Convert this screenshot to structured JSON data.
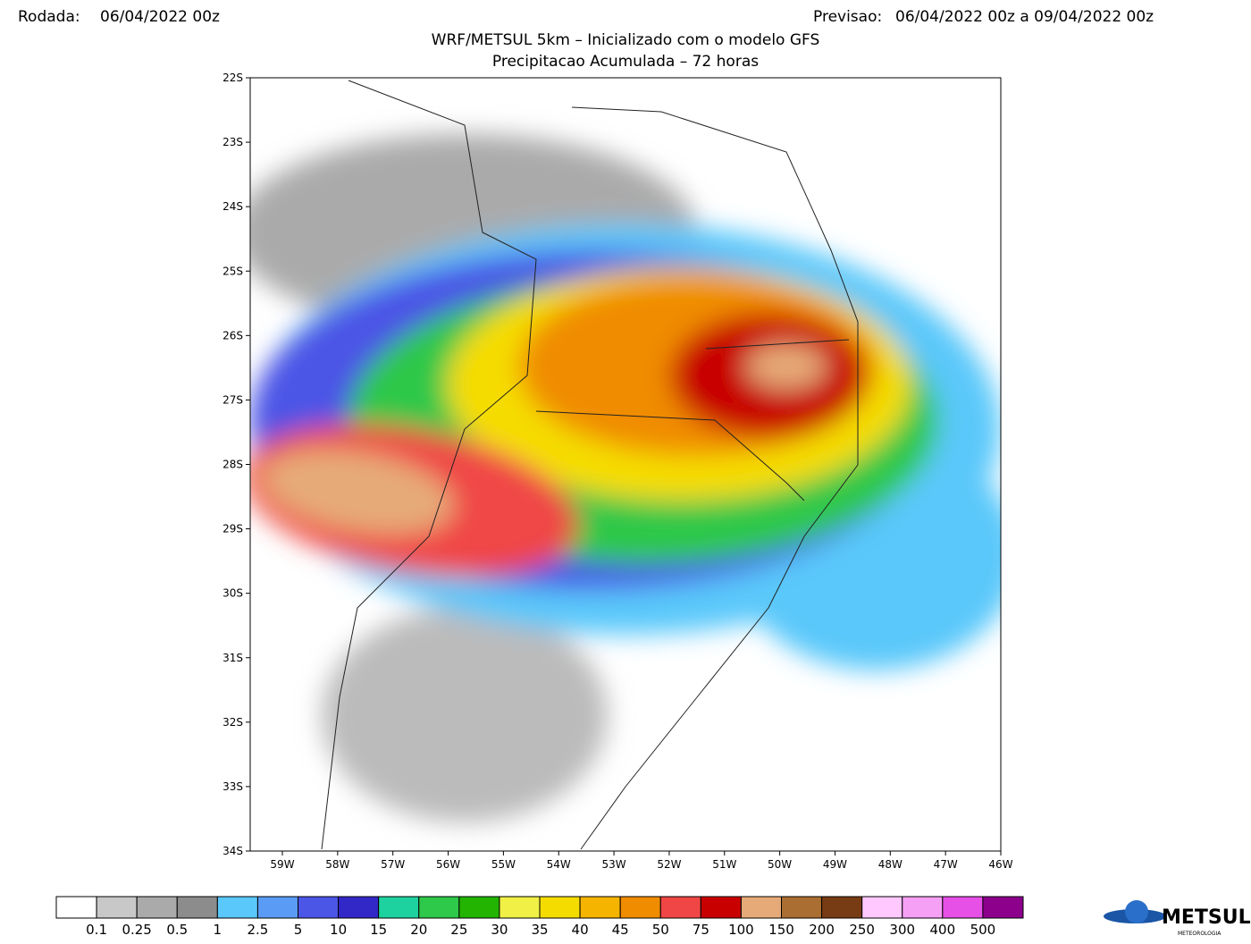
{
  "header": {
    "run_label": "Rodada:",
    "run": "06/04/2022 00z",
    "forecast_label": "Previsao:",
    "forecast": "06/04/2022 00z a 09/04/2022 00z",
    "title": "WRF/METSUL 5km – Inicializado com o modelo GFS",
    "subtitle": "Precipitacao Acumulada – 72 horas"
  },
  "map": {
    "lat_ticks": [
      "22S",
      "23S",
      "24S",
      "25S",
      "26S",
      "27S",
      "28S",
      "29S",
      "30S",
      "31S",
      "32S",
      "33S",
      "34S"
    ],
    "lon_ticks": [
      "59W",
      "58W",
      "57W",
      "56W",
      "55W",
      "54W",
      "53W",
      "52W",
      "51W",
      "50W",
      "49W",
      "48W",
      "47W",
      "46W"
    ]
  },
  "colorbar": {
    "colors": [
      "#ffffff",
      "#c8c8c8",
      "#aaaaaa",
      "#8c8c8c",
      "#5ac8fa",
      "#5a9bf5",
      "#4b55e6",
      "#3228c8",
      "#1ed2a0",
      "#2ec84a",
      "#22b400",
      "#f0f046",
      "#f5dc00",
      "#f5b400",
      "#f08c00",
      "#f04646",
      "#c80000",
      "#e6aa78",
      "#aa6e32",
      "#783c14",
      "#ffc8ff",
      "#f5a0f5",
      "#e650e6",
      "#8c008c"
    ],
    "labels": [
      "0.1",
      "0.25",
      "0.5",
      "1",
      "2.5",
      "5",
      "10",
      "15",
      "20",
      "25",
      "30",
      "35",
      "40",
      "45",
      "50",
      "75",
      "100",
      "150",
      "200",
      "250",
      "300",
      "400",
      "500"
    ]
  },
  "logo": {
    "text": "METSUL",
    "subtext": "METEOROLOGIA"
  }
}
